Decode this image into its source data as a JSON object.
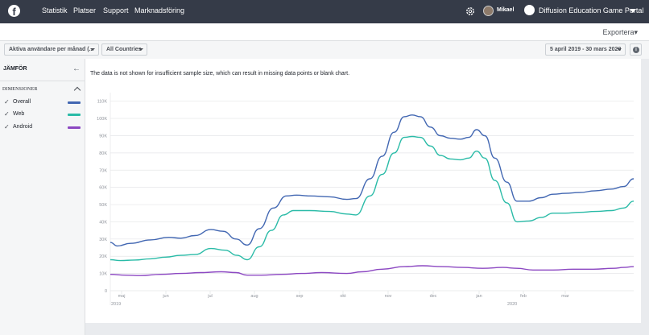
{
  "topbar": {
    "logo": "f",
    "nav": [
      "Statistik",
      "Platser",
      "Support",
      "Marknadsföring"
    ],
    "user_name": "Mikael",
    "page_name": "Diffusion Education Game Portal"
  },
  "subheader": {
    "export_label": "Exportera"
  },
  "filters": {
    "metric": "Aktiva användare per månad (...",
    "country": "All Countries",
    "date_range": "5 april 2019 - 30 mars 2020",
    "info_icon": "info-icon"
  },
  "sidebar": {
    "title": "JÄMFÖR",
    "dimensions_label": "DIMENSIONER",
    "items": [
      {
        "label": "Overall",
        "color": "#4267b2"
      },
      {
        "label": "Web",
        "color": "#2abba7"
      },
      {
        "label": "Android",
        "color": "#8c48c2"
      }
    ]
  },
  "notice": "The data is not shown for insufficient sample size, which can result in missing data points or blank chart.",
  "chart_data": {
    "type": "line",
    "ylim": [
      0,
      115000
    ],
    "y_ticks": [
      "0",
      "10K",
      "20K",
      "30K",
      "40K",
      "50K",
      "60K",
      "70K",
      "80K",
      "90K",
      "100K",
      "110K"
    ],
    "x_ticks": [
      "maj",
      "jun",
      "jul",
      "aug",
      "sep",
      "okt",
      "nov",
      "dec",
      "jan",
      "feb",
      "mar"
    ],
    "year_labels": [
      "2019",
      "2020"
    ],
    "grid": true,
    "series": [
      {
        "name": "Overall",
        "color": "#4267b2",
        "points": [
          [
            0,
            28000
          ],
          [
            7,
            26000
          ],
          [
            20,
            27500
          ],
          [
            40,
            29500
          ],
          [
            58,
            31000
          ],
          [
            70,
            30500
          ],
          [
            84,
            32000
          ],
          [
            100,
            35500
          ],
          [
            112,
            34500
          ],
          [
            125,
            30000
          ],
          [
            136,
            26500
          ],
          [
            148,
            36000
          ],
          [
            162,
            48000
          ],
          [
            175,
            55000
          ],
          [
            185,
            55500
          ],
          [
            198,
            55000
          ],
          [
            218,
            54500
          ],
          [
            235,
            53000
          ],
          [
            244,
            53500
          ],
          [
            258,
            65000
          ],
          [
            270,
            78000
          ],
          [
            282,
            92000
          ],
          [
            292,
            101000
          ],
          [
            300,
            102000
          ],
          [
            308,
            101000
          ],
          [
            318,
            95000
          ],
          [
            328,
            90000
          ],
          [
            338,
            88500
          ],
          [
            348,
            88000
          ],
          [
            356,
            89000
          ],
          [
            364,
            93500
          ],
          [
            372,
            90000
          ],
          [
            382,
            77000
          ],
          [
            394,
            63000
          ],
          [
            404,
            52000
          ],
          [
            416,
            52000
          ],
          [
            428,
            54000
          ],
          [
            440,
            56000
          ],
          [
            452,
            56500
          ],
          [
            466,
            57000
          ],
          [
            482,
            58000
          ],
          [
            498,
            59000
          ],
          [
            510,
            60500
          ],
          [
            520,
            65000
          ]
        ]
      },
      {
        "name": "Web",
        "color": "#2abba7",
        "points": [
          [
            0,
            18000
          ],
          [
            10,
            17500
          ],
          [
            24,
            17800
          ],
          [
            40,
            18500
          ],
          [
            55,
            19500
          ],
          [
            70,
            20500
          ],
          [
            84,
            21000
          ],
          [
            100,
            24500
          ],
          [
            114,
            23500
          ],
          [
            126,
            20500
          ],
          [
            136,
            18000
          ],
          [
            148,
            25500
          ],
          [
            160,
            35000
          ],
          [
            172,
            44000
          ],
          [
            182,
            46500
          ],
          [
            198,
            46500
          ],
          [
            218,
            46000
          ],
          [
            235,
            44500
          ],
          [
            244,
            44000
          ],
          [
            258,
            55000
          ],
          [
            270,
            67500
          ],
          [
            282,
            80000
          ],
          [
            292,
            89000
          ],
          [
            300,
            89500
          ],
          [
            308,
            89000
          ],
          [
            318,
            84000
          ],
          [
            328,
            78500
          ],
          [
            338,
            76500
          ],
          [
            348,
            76000
          ],
          [
            356,
            77000
          ],
          [
            364,
            81000
          ],
          [
            372,
            77000
          ],
          [
            382,
            64000
          ],
          [
            394,
            51000
          ],
          [
            404,
            40000
          ],
          [
            416,
            40500
          ],
          [
            428,
            42500
          ],
          [
            440,
            45000
          ],
          [
            452,
            45000
          ],
          [
            466,
            45500
          ],
          [
            482,
            46000
          ],
          [
            498,
            46500
          ],
          [
            510,
            48000
          ],
          [
            520,
            52000
          ]
        ]
      },
      {
        "name": "Android",
        "color": "#8c48c2",
        "points": [
          [
            0,
            9500
          ],
          [
            15,
            9000
          ],
          [
            30,
            8800
          ],
          [
            50,
            9500
          ],
          [
            70,
            10000
          ],
          [
            90,
            10500
          ],
          [
            110,
            11000
          ],
          [
            125,
            10500
          ],
          [
            136,
            9000
          ],
          [
            150,
            9000
          ],
          [
            170,
            9500
          ],
          [
            190,
            10000
          ],
          [
            210,
            10500
          ],
          [
            235,
            10000
          ],
          [
            250,
            11000
          ],
          [
            270,
            12500
          ],
          [
            292,
            14000
          ],
          [
            310,
            14500
          ],
          [
            330,
            14000
          ],
          [
            350,
            13500
          ],
          [
            370,
            13000
          ],
          [
            390,
            13500
          ],
          [
            404,
            13000
          ],
          [
            420,
            12000
          ],
          [
            440,
            12000
          ],
          [
            460,
            12500
          ],
          [
            480,
            12500
          ],
          [
            500,
            13000
          ],
          [
            510,
            13500
          ],
          [
            520,
            14000
          ]
        ]
      }
    ]
  }
}
